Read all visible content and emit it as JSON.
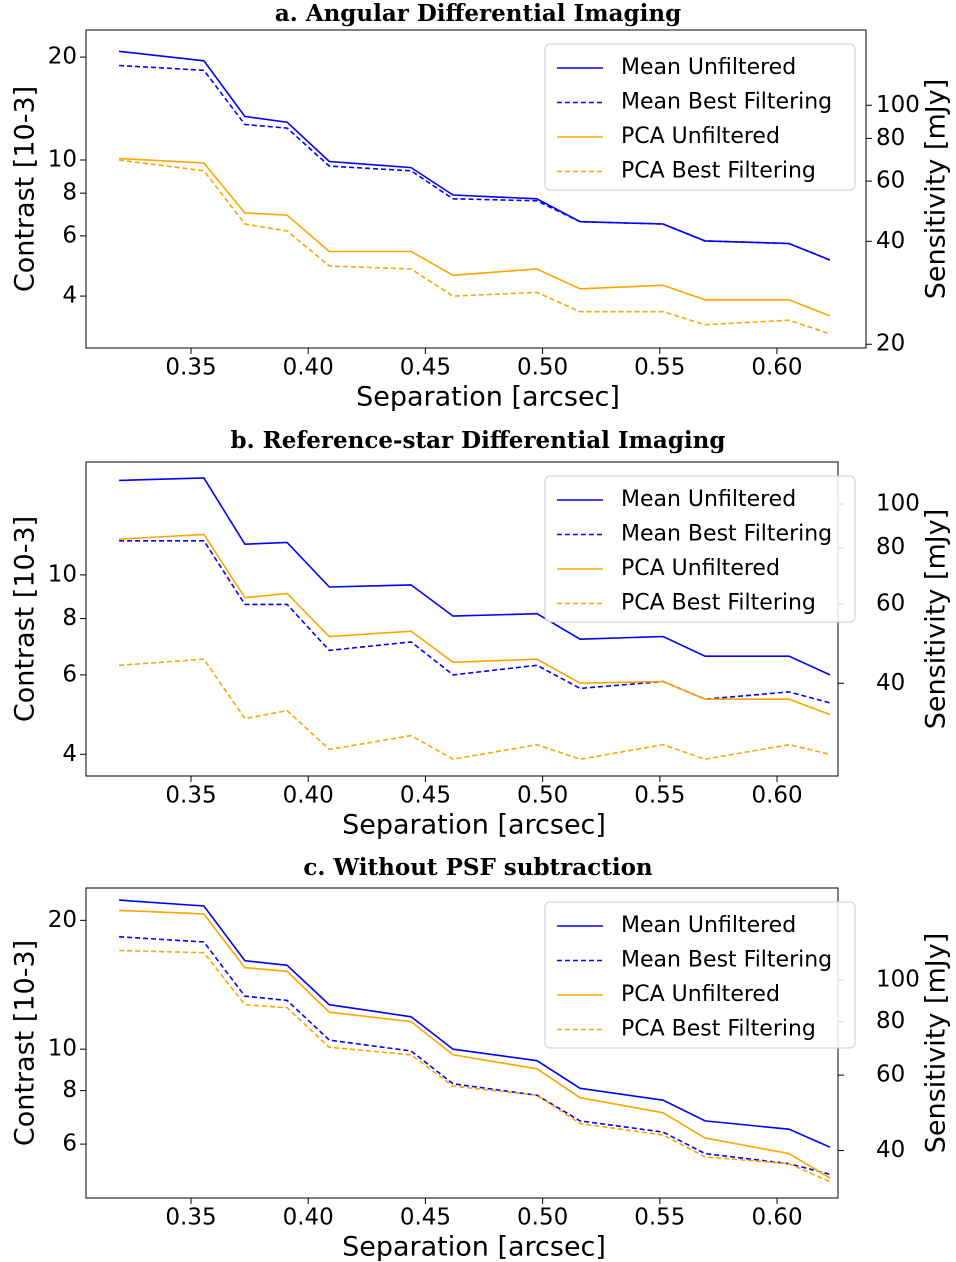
{
  "chart_data": [
    {
      "type": "line",
      "title": "a. Angular Differential Imaging",
      "x_label": "Separation [arcsec]",
      "y_label": "Contrast [10-3]",
      "y2_label": "Sensitivity [mJy]",
      "x": [
        0.3193,
        0.3555,
        0.373,
        0.391,
        0.409,
        0.4439,
        0.4618,
        0.4976,
        0.516,
        0.5514,
        0.5693,
        0.6051,
        0.6226
      ],
      "series": [
        {
          "name": "Mean Unfiltered",
          "color": "#0000ff",
          "linestyle": "solid",
          "values": [
            20.8,
            19.5,
            13.4,
            12.9,
            9.9,
            9.5,
            7.9,
            7.7,
            6.6,
            6.5,
            5.8,
            5.7,
            5.1
          ]
        },
        {
          "name": "Mean Best Filtering",
          "color": "#0000ff",
          "linestyle": "dashed",
          "values": [
            18.9,
            18.3,
            12.7,
            12.4,
            9.6,
            9.3,
            7.7,
            7.6,
            6.6,
            6.5,
            5.8,
            5.7,
            5.1
          ]
        },
        {
          "name": "PCA Unfiltered",
          "color": "#ffa500",
          "linestyle": "solid",
          "values": [
            10.1,
            9.8,
            7.0,
            6.9,
            5.4,
            5.4,
            4.6,
            4.8,
            4.2,
            4.3,
            3.9,
            3.9,
            3.5
          ]
        },
        {
          "name": "PCA Best Filtering",
          "color": "#ffa500",
          "linestyle": "dashed",
          "values": [
            10.0,
            9.3,
            6.5,
            6.2,
            4.9,
            4.8,
            4.0,
            4.1,
            3.6,
            3.6,
            3.3,
            3.4,
            3.1
          ]
        }
      ],
      "xlim": [
        0.3052,
        0.638
      ],
      "xticks": [
        0.35,
        {
          "value": 0.4,
          "label": "0.40"
        },
        0.45,
        {
          "value": 0.5,
          "label": "0.50"
        },
        0.55,
        {
          "value": 0.6,
          "label": "0.60"
        }
      ],
      "ylim": [
        2.82,
        24.0
      ],
      "yticks": [
        4,
        6,
        8,
        10,
        20
      ],
      "ylog": true,
      "y2lim": [
        19.5,
        166
      ],
      "y2ticks": [
        20,
        40,
        60,
        80,
        100
      ],
      "y2log": true,
      "legend": "upper right"
    },
    {
      "type": "line",
      "title": "b. Reference-star Differential Imaging",
      "x_label": "Separation [arcsec]",
      "y_label": "Contrast [10-3]",
      "y2_label": "Sensitivity [mJy]",
      "x": [
        0.3193,
        0.3555,
        0.373,
        0.391,
        0.409,
        0.4439,
        0.4618,
        0.4976,
        0.516,
        0.5514,
        0.5693,
        0.6051,
        0.6226
      ],
      "series": [
        {
          "name": "Mean Unfiltered",
          "color": "#0000ff",
          "linestyle": "solid",
          "values": [
            16.2,
            16.4,
            11.7,
            11.8,
            9.4,
            9.5,
            8.1,
            8.2,
            7.2,
            7.3,
            6.6,
            6.6,
            6.0
          ]
        },
        {
          "name": "Mean Best Filtering",
          "color": "#0000ff",
          "linestyle": "dashed",
          "values": [
            11.9,
            11.9,
            8.6,
            8.6,
            6.8,
            7.1,
            6.0,
            6.3,
            5.6,
            5.8,
            5.3,
            5.5,
            5.2
          ]
        },
        {
          "name": "PCA Unfiltered",
          "color": "#ffa500",
          "linestyle": "solid",
          "values": [
            12.0,
            12.3,
            8.9,
            9.1,
            7.3,
            7.5,
            6.4,
            6.5,
            5.75,
            5.8,
            5.3,
            5.3,
            4.9
          ]
        },
        {
          "name": "PCA Best Filtering",
          "color": "#ffa500",
          "linestyle": "dashed",
          "values": [
            6.3,
            6.5,
            4.8,
            5.0,
            4.1,
            4.4,
            3.9,
            4.2,
            3.9,
            4.2,
            3.9,
            4.2,
            4.0
          ]
        }
      ],
      "xlim": [
        0.3052,
        0.626
      ],
      "xticks": [
        0.35,
        {
          "value": 0.4,
          "label": "0.40"
        },
        0.45,
        {
          "value": 0.5,
          "label": "0.50"
        },
        0.55,
        {
          "value": 0.6,
          "label": "0.60"
        }
      ],
      "ylim": [
        3.58,
        17.8
      ],
      "yticks": [
        4,
        6,
        8,
        10
      ],
      "ylog": true,
      "y2lim": [
        24.9,
        124
      ],
      "y2ticks": [
        40,
        60,
        80,
        100
      ],
      "y2log": true,
      "legend": "upper right"
    },
    {
      "type": "line",
      "title": "c. Without PSF subtraction",
      "x_label": "Separation [arcsec]",
      "y_label": "Contrast [10-3]",
      "y2_label": "Sensitivity [mJy]",
      "x": [
        0.3193,
        0.3555,
        0.373,
        0.391,
        0.409,
        0.4439,
        0.4618,
        0.4976,
        0.516,
        0.5514,
        0.5693,
        0.6051,
        0.6226
      ],
      "series": [
        {
          "name": "Mean Unfiltered",
          "color": "#0000ff",
          "linestyle": "solid",
          "values": [
            22.3,
            21.6,
            16.1,
            15.7,
            12.7,
            11.9,
            10.0,
            9.4,
            8.1,
            7.6,
            6.8,
            6.5,
            5.9
          ]
        },
        {
          "name": "Mean Best Filtering",
          "color": "#0000ff",
          "linestyle": "dashed",
          "values": [
            18.3,
            17.8,
            13.3,
            13.0,
            10.5,
            9.9,
            8.3,
            7.8,
            6.8,
            6.4,
            5.7,
            5.4,
            5.1
          ]
        },
        {
          "name": "PCA Unfiltered",
          "color": "#ffa500",
          "linestyle": "solid",
          "values": [
            21.1,
            20.7,
            15.5,
            15.2,
            12.2,
            11.6,
            9.7,
            9.0,
            7.7,
            7.1,
            6.2,
            5.7,
            5.0
          ]
        },
        {
          "name": "PCA Best Filtering",
          "color": "#ffa500",
          "linestyle": "dashed",
          "values": [
            17.0,
            16.8,
            12.7,
            12.5,
            10.1,
            9.7,
            8.2,
            7.8,
            6.7,
            6.3,
            5.6,
            5.4,
            4.9
          ]
        }
      ],
      "xlim": [
        0.3052,
        0.626
      ],
      "xticks": [
        0.35,
        {
          "value": 0.4,
          "label": "0.40"
        },
        0.45,
        {
          "value": 0.5,
          "label": "0.50"
        },
        0.55,
        {
          "value": 0.6,
          "label": "0.60"
        }
      ],
      "ylim": [
        4.49,
        23.8
      ],
      "yticks": [
        6,
        8,
        10,
        20
      ],
      "ylog": true,
      "y2lim": [
        31,
        164
      ],
      "y2ticks": [
        40,
        60,
        80,
        100
      ],
      "y2log": true,
      "legend": "upper right"
    }
  ]
}
